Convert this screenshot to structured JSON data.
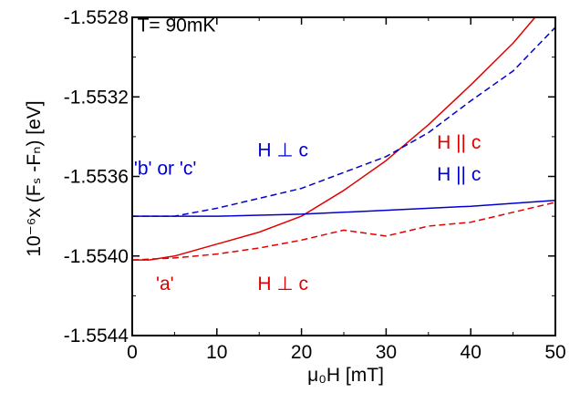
{
  "chart_data": {
    "type": "line",
    "xlabel": "μ₀H [mT]",
    "ylabel": "10⁻⁶x (Fₛ -Fₙ) [eV]",
    "xlim": [
      0,
      50
    ],
    "ylim": [
      -1.5544,
      -1.5528
    ],
    "x_ticks": [
      0,
      10,
      20,
      30,
      40,
      50
    ],
    "x_tick_labels": [
      "0",
      "10",
      "20",
      "30",
      "40",
      "50"
    ],
    "y_ticks": [
      -1.5544,
      -1.554,
      -1.5536,
      -1.5532,
      -1.5528
    ],
    "y_tick_labels": [
      "-1.5544",
      "-1.5540",
      "-1.5536",
      "-1.5532",
      "-1.5528"
    ],
    "grid": false,
    "series": [
      {
        "name": "'a' H || c",
        "color": "#e00000",
        "dash": "solid",
        "x": [
          0,
          2,
          5,
          10,
          15,
          20,
          25,
          30,
          35,
          40,
          45,
          50
        ],
        "y": [
          -1.55402,
          -1.55402,
          -1.554,
          -1.55394,
          -1.55388,
          -1.5538,
          -1.55367,
          -1.55352,
          -1.55334,
          -1.55314,
          -1.55293,
          -1.55268
        ]
      },
      {
        "name": "'a' H ⊥ c",
        "color": "#e00000",
        "dash": "dashed",
        "x": [
          0,
          5,
          10,
          15,
          20,
          25,
          30,
          35,
          40,
          45,
          50
        ],
        "y": [
          -1.55402,
          -1.55401,
          -1.55399,
          -1.55396,
          -1.55392,
          -1.55387,
          -1.5539,
          -1.55385,
          -1.55383,
          -1.55378,
          -1.55373
        ]
      },
      {
        "name": "'b' or 'c' H || c",
        "color": "#0000cc",
        "dash": "solid",
        "x": [
          0,
          10,
          20,
          30,
          40,
          50
        ],
        "y": [
          -1.5538,
          -1.5538,
          -1.55379,
          -1.55377,
          -1.55375,
          -1.55372
        ]
      },
      {
        "name": "'b' or 'c' H ⊥ c",
        "color": "#0000cc",
        "dash": "dashed",
        "x": [
          0,
          5,
          10,
          15,
          20,
          25,
          30,
          35,
          40,
          45,
          50
        ],
        "y": [
          -1.5538,
          -1.5538,
          -1.55376,
          -1.55371,
          -1.55366,
          -1.55358,
          -1.5535,
          -1.55338,
          -1.55322,
          -1.55307,
          -1.55285
        ]
      }
    ],
    "annotations": [
      {
        "text": "T= 90mK",
        "x": 0.6,
        "y": -1.55287,
        "color": "#000000",
        "anchor": "start"
      },
      {
        "text": "'b' or 'c'",
        "x": 0.2,
        "y": -1.55359,
        "color": "#0000cc",
        "anchor": "start"
      },
      {
        "text": "H ⊥ c",
        "x": 14.8,
        "y": -1.5535,
        "color": "#0000cc",
        "anchor": "start"
      },
      {
        "text": "H || c",
        "x": 36.0,
        "y": -1.55346,
        "color": "#e00000",
        "anchor": "start"
      },
      {
        "text": "H || c",
        "x": 36.0,
        "y": -1.55362,
        "color": "#0000cc",
        "anchor": "start"
      },
      {
        "text": "'a'",
        "x": 2.8,
        "y": -1.55417,
        "color": "#e00000",
        "anchor": "start"
      },
      {
        "text": "H ⊥ c",
        "x": 14.8,
        "y": -1.55417,
        "color": "#e00000",
        "anchor": "start"
      }
    ]
  }
}
